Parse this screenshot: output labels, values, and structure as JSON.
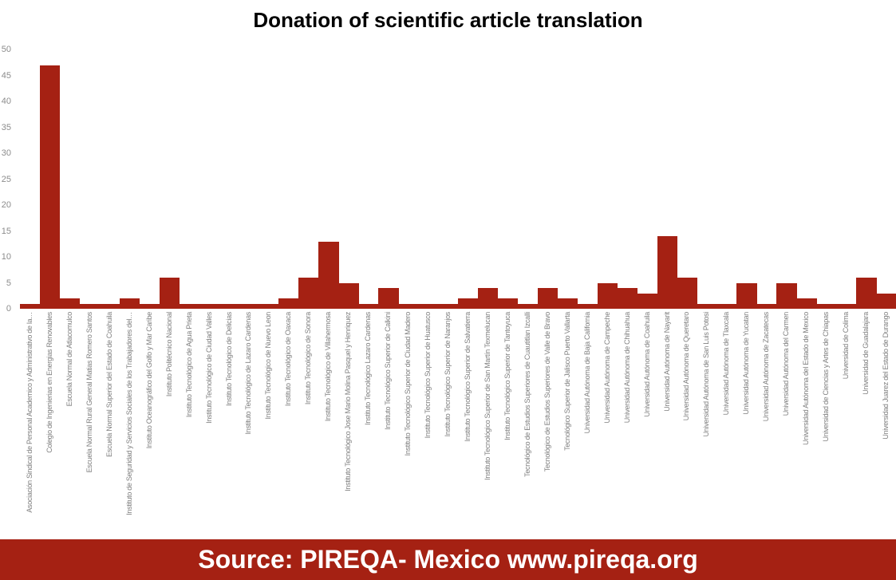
{
  "title": "Donation of scientific article translation",
  "footer": {
    "text": "Source: PIREQA- Mexico  www.pireqa.org"
  },
  "colors": {
    "bar": "#a52113",
    "axis_line": "#a52113",
    "footer_bg": "#a52113",
    "footer_text": "#ffffff",
    "title_text": "#000000",
    "tick_label": "#8c8c8c",
    "category_label": "#7f7f7f",
    "background": "#ffffff"
  },
  "chart_data": {
    "type": "bar",
    "title": "Donation of scientific article translation",
    "xlabel": "",
    "ylabel": "",
    "ylim": [
      0,
      50
    ],
    "yticks": [
      0,
      5,
      10,
      15,
      20,
      25,
      30,
      35,
      40,
      45,
      50
    ],
    "grid": false,
    "legend": null,
    "bar_gap": 0,
    "categories": [
      "Asociación Sindical de Personal Academico y Administrativo de la…",
      "Colegio de Ingenierias en Energias Renovables",
      "Escuela Normal de Atlacomulco",
      "Escuela Normal Rural General Matias Romero Santos",
      "Escuela Normal Superior del Estado de Coahuila",
      "Instituto de Seguridad y Servicios Sociales de los Trabajadores del…",
      "Instituto Oceanográfico del Golfo y Mar Caribe",
      "Instituto Politécnico Nacional",
      "Instituto Tecnológico de Agua Prieta",
      "Instituto Tecnológico de Ciudad Valles",
      "Instituto Tecnológico de Delicias",
      "Instituto Tecnológico de Lazaro Cardenas",
      "Instituto Tecnológico de Nuevo Leon",
      "Instituto Tecnológico de Oaxaca",
      "Instituto Tecnológico de Sonora",
      "Instituto Tecnológico de Villahermosa",
      "Instituto Tecnológico Jose Mario Molina Pasquel y Henriquez",
      "Instituto Tecnológico Lazaro Cardenas",
      "Instituto Tecnológico Superior de Calkini",
      "Instituto Tecnológico Superior de Ciudad Madero",
      "Instituto Tecnológico Superior de Huatusco",
      "Instituto Tecnológico Superior de Naranjos",
      "Instituto Tecnológico Superior de Salvatierra",
      "Instituto Tecnológico Superior de San Martín Texmelucan",
      "Instituto Tecnológico Superior de Tantoyuca",
      "Tecnológico de Estudios Superiores de Cuautitlan Izcalli",
      "Tecnológico de Estudios Superiores de Valle de Bravo",
      "Tecnológico Superior de Jalisco Puerto Vallarta",
      "Universidad Autónoma de Baja California",
      "Universidad Autónoma de Campeche",
      "Universidad Autónoma de Chihuahua",
      "Universidad Autónoma de Coahuila",
      "Universidad Autónoma de Nayarit",
      "Universidad Autónoma de Queretaro",
      "Universidad Autónoma de San Luis Potosi",
      "Universidad Autónoma de Tlaxcala",
      "Universidad Autónoma de Yucatan",
      "Universidad Autónoma de Zacatecas",
      "Universidad Autónoma del Carmen",
      "Universidad Autónoma del Estado de Mexico",
      "Universidad de Ciencias y Artes de Chiapas",
      "Universidad de Colima",
      "Universidad de Guadalajara",
      "Universidad Juarez del Estado de Durango"
    ],
    "values": [
      1,
      47,
      2,
      1,
      1,
      2,
      1,
      6,
      1,
      1,
      1,
      1,
      1,
      2,
      6,
      13,
      5,
      1,
      4,
      1,
      1,
      1,
      2,
      4,
      2,
      1,
      4,
      2,
      1,
      5,
      4,
      3,
      14,
      6,
      1,
      1,
      5,
      1,
      5,
      2,
      1,
      1,
      6,
      3
    ]
  }
}
